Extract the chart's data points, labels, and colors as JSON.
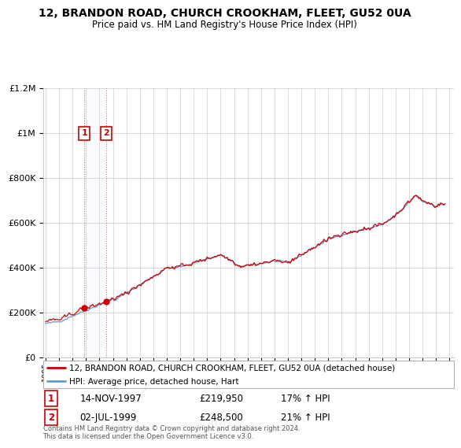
{
  "title1": "12, BRANDON ROAD, CHURCH CROOKHAM, FLEET, GU52 0UA",
  "title2": "Price paid vs. HM Land Registry's House Price Index (HPI)",
  "legend_line1": "12, BRANDON ROAD, CHURCH CROOKHAM, FLEET, GU52 0UA (detached house)",
  "legend_line2": "HPI: Average price, detached house, Hart",
  "sale1_date": "14-NOV-1997",
  "sale1_price": "£219,950",
  "sale1_hpi": "17% ↑ HPI",
  "sale2_date": "02-JUL-1999",
  "sale2_price": "£248,500",
  "sale2_hpi": "21% ↑ HPI",
  "footer": "Contains HM Land Registry data © Crown copyright and database right 2024.\nThis data is licensed under the Open Government Licence v3.0.",
  "red_color": "#cc0000",
  "blue_color": "#6699cc",
  "background_color": "#ffffff",
  "grid_color": "#cccccc",
  "sale1_year": 1997.87,
  "sale1_price_val": 219950,
  "sale2_year": 1999.5,
  "sale2_price_val": 248500,
  "ylim": [
    0,
    1200000
  ],
  "xlim_left": 1994.8,
  "xlim_right": 2025.3
}
